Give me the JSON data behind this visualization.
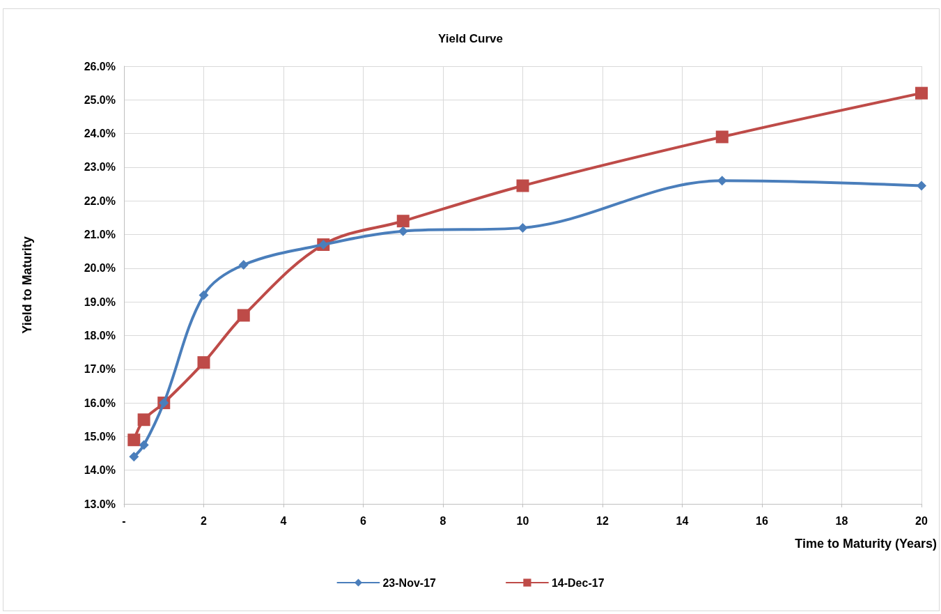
{
  "chart_data": {
    "type": "line",
    "title": "Yield Curve",
    "xlabel": "Time to Maturity (Years)",
    "ylabel": "Yield to Maturity",
    "series": [
      {
        "name": "23-Nov-17",
        "color": "#4a7ebb",
        "marker": "diamond",
        "x": [
          0.25,
          0.5,
          1,
          2,
          3,
          5,
          7,
          10,
          15,
          20
        ],
        "values": [
          14.4,
          14.75,
          16.0,
          19.2,
          20.1,
          20.7,
          21.1,
          21.2,
          22.6,
          22.45
        ]
      },
      {
        "name": "14-Dec-17",
        "color": "#be4b48",
        "marker": "square",
        "x": [
          0.25,
          0.5,
          1,
          2,
          3,
          5,
          7,
          10,
          15,
          20
        ],
        "values": [
          14.9,
          15.5,
          16.0,
          17.2,
          18.6,
          20.7,
          21.4,
          22.45,
          23.9,
          25.2
        ]
      }
    ],
    "xlim": [
      0,
      20
    ],
    "xticks": [
      {
        "value": 0,
        "label": "-"
      },
      2,
      4,
      6,
      8,
      10,
      12,
      14,
      16,
      18,
      20
    ],
    "ylim": [
      13,
      26
    ],
    "yticks": [
      {
        "value": 13,
        "label": "13.0%"
      },
      {
        "value": 14,
        "label": "14.0%"
      },
      {
        "value": 15,
        "label": "15.0%"
      },
      {
        "value": 16,
        "label": "16.0%"
      },
      {
        "value": 17,
        "label": "17.0%"
      },
      {
        "value": 18,
        "label": "18.0%"
      },
      {
        "value": 19,
        "label": "19.0%"
      },
      {
        "value": 20,
        "label": "20.0%"
      },
      {
        "value": 21,
        "label": "21.0%"
      },
      {
        "value": 22,
        "label": "22.0%"
      },
      {
        "value": 23,
        "label": "23.0%"
      },
      {
        "value": 24,
        "label": "24.0%"
      },
      {
        "value": 25,
        "label": "25.0%"
      },
      {
        "value": 26,
        "label": "26.0%"
      }
    ],
    "grid": true,
    "legend": "bottom",
    "line_style": "solid"
  }
}
